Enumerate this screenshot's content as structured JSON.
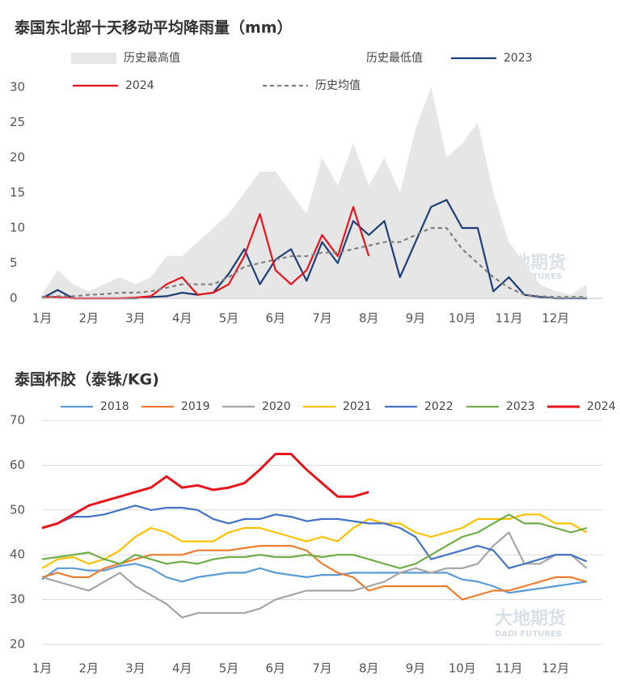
{
  "watermark": "大地期货",
  "watermark_en": "DADI FUTURES",
  "chart_data": [
    {
      "type": "line",
      "title": "泰国东北部十天移动平均降雨量（mm）",
      "categories": [
        "1月",
        null,
        null,
        "2月",
        null,
        null,
        "3月",
        null,
        null,
        "4月",
        null,
        null,
        "5月",
        null,
        null,
        "6月",
        null,
        null,
        "7月",
        null,
        null,
        "8月",
        null,
        null,
        "9月",
        null,
        null,
        "10月",
        null,
        null,
        "11月",
        null,
        null,
        "12月",
        null,
        null
      ],
      "ylim": [
        0,
        30
      ],
      "yticks": [
        0,
        5,
        10,
        15,
        20,
        25,
        30
      ],
      "grid": false,
      "series": [
        {
          "name": "历史最高值",
          "color": "#e6e6e6",
          "style": "area",
          "values": [
            0.5,
            4,
            2,
            1,
            2,
            3,
            2,
            3,
            6,
            6,
            8,
            10,
            12,
            15,
            18,
            18,
            15,
            12,
            20,
            16,
            22,
            16,
            20,
            15,
            24,
            30,
            20,
            22,
            25,
            15,
            8,
            5,
            2,
            1,
            0.5,
            2
          ]
        },
        {
          "name": "历史最低值",
          "color": "#ffffff",
          "style": "line",
          "values": [
            0,
            0,
            0,
            0,
            0,
            0,
            0,
            0,
            0,
            0,
            0,
            0,
            0,
            0,
            0,
            0,
            0,
            0,
            0,
            0,
            0,
            0,
            0,
            0,
            0,
            0,
            0,
            0,
            0,
            0,
            0,
            0,
            0,
            0,
            0,
            0
          ]
        },
        {
          "name": "2023",
          "color": "#1f3f77",
          "style": "line",
          "values": [
            0,
            1.2,
            0,
            0,
            0,
            0,
            0,
            0.2,
            0.3,
            0.8,
            0.5,
            0.8,
            3.5,
            7,
            2,
            5.5,
            7,
            2.5,
            8,
            5,
            11,
            9,
            11,
            3,
            8,
            13,
            14,
            10,
            10,
            1,
            3,
            0.5,
            0.2,
            0,
            0,
            0
          ]
        },
        {
          "name": "2024",
          "color": "#e8141b",
          "style": "line",
          "values": [
            0.2,
            0.2,
            0,
            0,
            0,
            0,
            0.1,
            0.3,
            2,
            3,
            0.5,
            0.8,
            2,
            6,
            12,
            4,
            2,
            4,
            9,
            6,
            13,
            6,
            null,
            null,
            null,
            null,
            null,
            null,
            null,
            null,
            null,
            null,
            null,
            null,
            null,
            null
          ]
        },
        {
          "name": "历史均值",
          "color": "#808080",
          "style": "dashed",
          "values": [
            0.2,
            0.3,
            0.3,
            0.5,
            0.6,
            0.8,
            0.8,
            1,
            1.5,
            2,
            2,
            2,
            3,
            4.5,
            5,
            5.5,
            6,
            6,
            6.5,
            6.5,
            7,
            7.5,
            8,
            8,
            9,
            10,
            10,
            7,
            5,
            3,
            1.5,
            0.5,
            0.3,
            0.2,
            0.2,
            0.2
          ]
        }
      ]
    },
    {
      "type": "line",
      "title": "泰国杯胶（泰铢/KG)",
      "categories": [
        "1月",
        null,
        null,
        "2月",
        null,
        null,
        "3月",
        null,
        null,
        "4月",
        null,
        null,
        "5月",
        null,
        null,
        "6月",
        null,
        null,
        "7月",
        null,
        null,
        "8月",
        null,
        null,
        "9月",
        null,
        null,
        "10月",
        null,
        null,
        "11月",
        null,
        null,
        "12月",
        null,
        null
      ],
      "ylim": [
        20,
        70
      ],
      "yticks": [
        20,
        30,
        40,
        50,
        60,
        70
      ],
      "grid": true,
      "series": [
        {
          "name": "2018",
          "color": "#5b9bd5",
          "style": "line",
          "values": [
            34.5,
            37,
            37,
            36.5,
            36.5,
            37.5,
            38,
            37,
            35,
            34,
            35,
            35.5,
            36,
            36,
            37,
            36,
            35.5,
            35,
            35.5,
            35.5,
            36,
            36,
            36,
            36,
            36,
            36,
            36,
            34.5,
            34,
            33,
            31.5,
            32,
            32.5,
            33,
            33.5,
            34
          ]
        },
        {
          "name": "2019",
          "color": "#ed7d31",
          "style": "line",
          "values": [
            35,
            36,
            35,
            35,
            37,
            38,
            39,
            40,
            40,
            40,
            41,
            41,
            41,
            41.5,
            42,
            42,
            42,
            41,
            38,
            36,
            35,
            32,
            33,
            33,
            33,
            33,
            33,
            30,
            31,
            32,
            32,
            33,
            34,
            35,
            35,
            34
          ]
        },
        {
          "name": "2020",
          "color": "#a5a5a5",
          "style": "line",
          "values": [
            35,
            34,
            33,
            32,
            34,
            36,
            33,
            31,
            29,
            26,
            27,
            27,
            27,
            27,
            28,
            30,
            31,
            32,
            32,
            32,
            32,
            33,
            34,
            36,
            37,
            36,
            37,
            37,
            38,
            42,
            45,
            38,
            38,
            40,
            40,
            37
          ]
        },
        {
          "name": "2021",
          "color": "#ffc000",
          "style": "line",
          "values": [
            37,
            39,
            39.5,
            38,
            39,
            41,
            44,
            46,
            45,
            43,
            43,
            43,
            45,
            46,
            46,
            45,
            44,
            43,
            44,
            43,
            46,
            48,
            47,
            47,
            45,
            44,
            45,
            46,
            48,
            48,
            48,
            49,
            49,
            47,
            47,
            45
          ]
        },
        {
          "name": "2022",
          "color": "#4472c4",
          "style": "line",
          "values": [
            46,
            47,
            48.5,
            48.5,
            49,
            50,
            51,
            50,
            50.5,
            50.5,
            50,
            48,
            47,
            48,
            48,
            49,
            48.5,
            47.5,
            48,
            48,
            47.5,
            47,
            47,
            46,
            44,
            39,
            40,
            41,
            42,
            41,
            37,
            38,
            39,
            40,
            40,
            38.5
          ]
        },
        {
          "name": "2023",
          "color": "#70ad47",
          "style": "line",
          "values": [
            39,
            39.5,
            40,
            40.5,
            39,
            38,
            40,
            39,
            38,
            38.5,
            38,
            39,
            39.5,
            39.5,
            40,
            39.5,
            39.5,
            40,
            39.5,
            40,
            40,
            39,
            38,
            37,
            38,
            40,
            42,
            44,
            45,
            47,
            49,
            47,
            47,
            46,
            45,
            46
          ]
        },
        {
          "name": "2024",
          "color": "#e8141b",
          "style": "bold",
          "values": [
            46,
            47,
            49,
            51,
            52,
            53,
            54,
            55,
            57.5,
            55,
            55.5,
            54.5,
            55,
            56,
            59,
            62.5,
            62.5,
            59,
            56,
            53,
            53,
            54,
            null,
            null,
            null,
            null,
            null,
            null,
            null,
            null,
            null,
            null,
            null,
            null,
            null,
            null
          ]
        }
      ]
    }
  ]
}
